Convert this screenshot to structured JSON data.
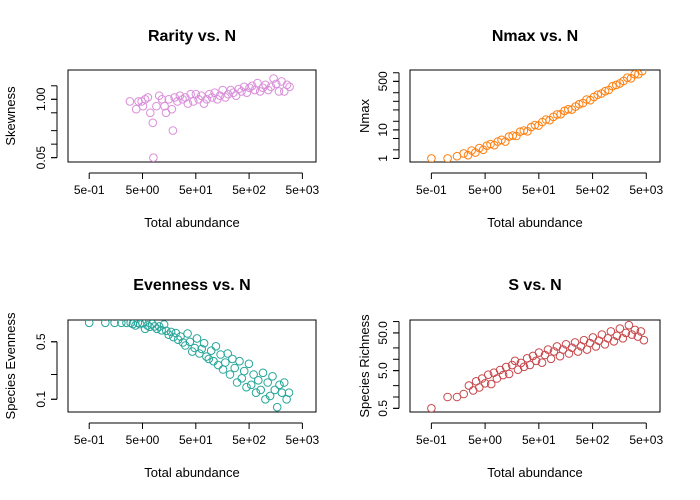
{
  "chart_data": [
    {
      "type": "scatter",
      "title": "Rarity vs. N",
      "xlabel": "Total abundance",
      "ylabel": "Skewness",
      "x_scale": "log",
      "y_scale": "log",
      "xlim": [
        0.2,
        9000
      ],
      "ylim": [
        0.04,
        4.5
      ],
      "x_ticks": [
        0.5,
        5,
        50,
        500,
        5000
      ],
      "x_tick_labels": [
        "5e-01",
        "5e+00",
        "5e+01",
        "5e+02",
        "5e+03"
      ],
      "y_ticks": [
        0.05,
        1.0
      ],
      "y_tick_labels": [
        "0.05",
        "1.00"
      ],
      "color": "#DA8FDA",
      "series": [
        {
          "points": [
            [
              2.9,
              0.9
            ],
            [
              3.8,
              0.6
            ],
            [
              4.2,
              0.9
            ],
            [
              4.8,
              0.9
            ],
            [
              5.1,
              0.7
            ],
            [
              5.6,
              1.0
            ],
            [
              6.3,
              1.1
            ],
            [
              7.0,
              0.5
            ],
            [
              7.8,
              0.3
            ],
            [
              8.0,
              0.05
            ],
            [
              9.1,
              0.7
            ],
            [
              10.3,
              1.2
            ],
            [
              11.6,
              1.0
            ],
            [
              13.0,
              0.7
            ],
            [
              13.8,
              0.5
            ],
            [
              15.6,
              1.0
            ],
            [
              17.7,
              0.6
            ],
            [
              18.6,
              0.2
            ],
            [
              20.0,
              1.1
            ],
            [
              22.5,
              0.9
            ],
            [
              25.2,
              1.2
            ],
            [
              28.3,
              1.0
            ],
            [
              31.7,
              1.1
            ],
            [
              35.6,
              0.8
            ],
            [
              39.9,
              1.3
            ],
            [
              44.8,
              0.9
            ],
            [
              50.3,
              1.3
            ],
            [
              56.5,
              1.0
            ],
            [
              63.4,
              1.2
            ],
            [
              71.2,
              0.8
            ],
            [
              79.9,
              1.0
            ],
            [
              89.7,
              1.3
            ],
            [
              100.7,
              1.1
            ],
            [
              113.1,
              1.4
            ],
            [
              126.9,
              1.0
            ],
            [
              142.5,
              1.2
            ],
            [
              160.0,
              1.6
            ],
            [
              179.6,
              1.1
            ],
            [
              201.6,
              1.3
            ],
            [
              226.3,
              1.6
            ],
            [
              254.1,
              1.4
            ],
            [
              285.2,
              1.2
            ],
            [
              320.2,
              1.7
            ],
            [
              359.4,
              1.5
            ],
            [
              403.4,
              1.9
            ],
            [
              452.9,
              1.4
            ],
            [
              508.4,
              1.8
            ],
            [
              570.7,
              2.0
            ],
            [
              640.7,
              1.6
            ],
            [
              719.2,
              2.3
            ],
            [
              807.4,
              1.5
            ],
            [
              906.3,
              1.8
            ],
            [
              1017.4,
              2.1
            ],
            [
              1142.1,
              1.6
            ],
            [
              1282.0,
              1.9
            ],
            [
              1439.2,
              2.9
            ],
            [
              1615.5,
              2.2
            ],
            [
              1813.6,
              1.5
            ],
            [
              2035.9,
              2.5
            ],
            [
              2285.4,
              1.5
            ],
            [
              2565.6,
              2.1
            ],
            [
              2880.0,
              1.9
            ]
          ]
        }
      ]
    },
    {
      "type": "scatter",
      "title": "Nmax vs. N",
      "xlabel": "Total abundance",
      "ylabel": "Nmax",
      "x_scale": "log",
      "y_scale": "log",
      "xlim": [
        0.2,
        9000
      ],
      "ylim": [
        0.75,
        1250
      ],
      "x_ticks": [
        0.5,
        5,
        50,
        500,
        5000
      ],
      "x_tick_labels": [
        "5e-01",
        "5e+00",
        "5e+01",
        "5e+02",
        "5e+03"
      ],
      "y_ticks": [
        1,
        10,
        500
      ],
      "y_tick_labels": [
        "1",
        "10",
        "500"
      ],
      "color": "#FF7F0E",
      "series": [
        {
          "points": [
            [
              0.5,
              1.0
            ],
            [
              1.0,
              1.0
            ],
            [
              1.5,
              1.2
            ],
            [
              2.0,
              1.5
            ],
            [
              2.4,
              1.3
            ],
            [
              2.8,
              1.9
            ],
            [
              3.3,
              1.6
            ],
            [
              3.9,
              2.3
            ],
            [
              4.6,
              2.0
            ],
            [
              5.4,
              2.8
            ],
            [
              6.3,
              3.2
            ],
            [
              7.4,
              2.9
            ],
            [
              8.6,
              3.9
            ],
            [
              10.1,
              4.5
            ],
            [
              11.9,
              3.9
            ],
            [
              13.9,
              5.8
            ],
            [
              16.3,
              6.3
            ],
            [
              19.1,
              6.1
            ],
            [
              22.4,
              8.6
            ],
            [
              26.2,
              9.4
            ],
            [
              30.7,
              8.9
            ],
            [
              36.0,
              12.5
            ],
            [
              42.2,
              14.8
            ],
            [
              49.4,
              14.1
            ],
            [
              57.9,
              18.8
            ],
            [
              67.9,
              23.0
            ],
            [
              79.5,
              21.9
            ],
            [
              93.2,
              28.7
            ],
            [
              109.2,
              34.9
            ],
            [
              127.9,
              35.5
            ],
            [
              149.9,
              46.4
            ],
            [
              175.7,
              52.7
            ],
            [
              205.9,
              51.5
            ],
            [
              241.2,
              65.3
            ],
            [
              282.6,
              79.3
            ],
            [
              331.2,
              86.5
            ],
            [
              388.1,
              115.7
            ],
            [
              454.8,
              109.3
            ],
            [
              532.9,
              143.1
            ],
            [
              624.5,
              170.4
            ],
            [
              731.7,
              187.5
            ],
            [
              857.4,
              226.3
            ],
            [
              1004.7,
              249.4
            ],
            [
              1177.3,
              338.4
            ],
            [
              1379.6,
              376.4
            ],
            [
              1616.6,
              423.6
            ],
            [
              1894.4,
              520.2
            ],
            [
              2219.8,
              670.9
            ],
            [
              2601.2,
              637.8
            ],
            [
              3048.1,
              887.2
            ],
            [
              3571.7,
              891.7
            ],
            [
              4185.3,
              1136.7
            ]
          ]
        }
      ]
    },
    {
      "type": "scatter",
      "title": "Evenness vs. N",
      "xlabel": "Total abundance",
      "ylabel": "Species Evenness",
      "x_scale": "log",
      "y_scale": "log",
      "xlim": [
        0.2,
        9000
      ],
      "ylim": [
        0.07,
        0.92
      ],
      "x_ticks": [
        0.5,
        5,
        50,
        500,
        5000
      ],
      "x_tick_labels": [
        "5e-01",
        "5e+00",
        "5e+01",
        "5e+02",
        "5e+03"
      ],
      "y_ticks": [
        0.1,
        0.5
      ],
      "y_tick_labels": [
        "0.1",
        "0.5"
      ],
      "color": "#26A69A",
      "series": [
        {
          "points": [
            [
              0.5,
              0.85
            ],
            [
              1.0,
              0.85
            ],
            [
              1.5,
              0.85
            ],
            [
              2.0,
              0.85
            ],
            [
              2.5,
              0.85
            ],
            [
              3.0,
              0.85
            ],
            [
              3.3,
              0.82
            ],
            [
              3.7,
              0.79
            ],
            [
              4.1,
              0.85
            ],
            [
              4.5,
              0.82
            ],
            [
              5.0,
              0.84
            ],
            [
              5.6,
              0.72
            ],
            [
              6.2,
              0.79
            ],
            [
              6.8,
              0.76
            ],
            [
              7.6,
              0.82
            ],
            [
              8.4,
              0.77
            ],
            [
              9.3,
              0.72
            ],
            [
              10.3,
              0.77
            ],
            [
              11.4,
              0.69
            ],
            [
              12.7,
              0.81
            ],
            [
              14.0,
              0.68
            ],
            [
              15.5,
              0.61
            ],
            [
              17.2,
              0.66
            ],
            [
              19.0,
              0.57
            ],
            [
              21.1,
              0.64
            ],
            [
              23.3,
              0.53
            ],
            [
              25.8,
              0.58
            ],
            [
              28.6,
              0.49
            ],
            [
              31.7,
              0.45
            ],
            [
              35.1,
              0.63
            ],
            [
              38.8,
              0.5
            ],
            [
              43.0,
              0.38
            ],
            [
              47.6,
              0.42
            ],
            [
              52.7,
              0.55
            ],
            [
              58.4,
              0.36
            ],
            [
              64.6,
              0.41
            ],
            [
              71.5,
              0.48
            ],
            [
              79.2,
              0.33
            ],
            [
              87.7,
              0.31
            ],
            [
              97.1,
              0.39
            ],
            [
              107.5,
              0.29
            ],
            [
              119.0,
              0.44
            ],
            [
              131.8,
              0.26
            ],
            [
              145.9,
              0.35
            ],
            [
              161.6,
              0.23
            ],
            [
              178.9,
              0.28
            ],
            [
              198.1,
              0.36
            ],
            [
              219.3,
              0.2
            ],
            [
              242.8,
              0.31
            ],
            [
              268.9,
              0.24
            ],
            [
              297.7,
              0.16
            ],
            [
              329.6,
              0.29
            ],
            [
              364.9,
              0.18
            ],
            [
              404.1,
              0.22
            ],
            [
              447.4,
              0.14
            ],
            [
              495.3,
              0.27
            ],
            [
              548.4,
              0.15
            ],
            [
              607.2,
              0.2
            ],
            [
              672.3,
              0.12
            ],
            [
              744.4,
              0.17
            ],
            [
              824.2,
              0.13
            ],
            [
              912.6,
              0.21
            ],
            [
              1010.4,
              0.1
            ],
            [
              1118.7,
              0.16
            ],
            [
              1238.6,
              0.11
            ],
            [
              1371.4,
              0.19
            ],
            [
              1518.4,
              0.13
            ],
            [
              1681.2,
              0.08
            ],
            [
              1861.3,
              0.15
            ],
            [
              2060.9,
              0.12
            ],
            [
              2281.8,
              0.16
            ],
            [
              2526.4,
              0.1
            ],
            [
              2797.2,
              0.12
            ]
          ]
        }
      ]
    },
    {
      "type": "scatter",
      "title": "S vs. N",
      "xlabel": "Total abundance",
      "ylabel": "Species Richness",
      "x_scale": "log",
      "y_scale": "log",
      "xlim": [
        0.2,
        9000
      ],
      "ylim": [
        0.4,
        110
      ],
      "x_ticks": [
        0.5,
        5,
        50,
        500,
        5000
      ],
      "x_tick_labels": [
        "5e-01",
        "5e+00",
        "5e+01",
        "5e+02",
        "5e+03"
      ],
      "y_ticks": [
        0.5,
        5,
        50
      ],
      "y_tick_labels": [
        "0.5",
        "5.0",
        "50.0"
      ],
      "color": "#C8474A",
      "series": [
        {
          "points": [
            [
              0.5,
              0.5
            ],
            [
              1.0,
              1.0
            ],
            [
              1.5,
              1.0
            ],
            [
              2.0,
              1.2
            ],
            [
              2.5,
              2.0
            ],
            [
              3.0,
              1.5
            ],
            [
              3.4,
              2.6
            ],
            [
              3.9,
              1.8
            ],
            [
              4.4,
              3.1
            ],
            [
              5.0,
              2.3
            ],
            [
              5.7,
              3.9
            ],
            [
              6.5,
              2.2
            ],
            [
              7.3,
              4.4
            ],
            [
              8.3,
              3.1
            ],
            [
              9.5,
              5.2
            ],
            [
              10.8,
              3.8
            ],
            [
              12.3,
              6.2
            ],
            [
              14.0,
              4.1
            ],
            [
              15.9,
              7.0
            ],
            [
              18.0,
              9.1
            ],
            [
              20.5,
              5.3
            ],
            [
              23.3,
              8.0
            ],
            [
              26.5,
              6.3
            ],
            [
              30.2,
              10.6
            ],
            [
              34.3,
              7.1
            ],
            [
              39.0,
              12.3
            ],
            [
              44.4,
              9.1
            ],
            [
              50.4,
              15.0
            ],
            [
              57.3,
              8.1
            ],
            [
              65.2,
              13.0
            ],
            [
              74.1,
              18.0
            ],
            [
              84.3,
              10.3
            ],
            [
              95.8,
              16.2
            ],
            [
              109.0,
              22.0
            ],
            [
              123.9,
              12.1
            ],
            [
              140.8,
              18.0
            ],
            [
              160.1,
              25.0
            ],
            [
              182.1,
              14.2
            ],
            [
              207.0,
              20.3
            ],
            [
              235.4,
              28.0
            ],
            [
              267.6,
              16.0
            ],
            [
              304.3,
              22.1
            ],
            [
              345.9,
              32.0
            ],
            [
              393.3,
              18.0
            ],
            [
              447.2,
              27.0
            ],
            [
              508.4,
              38.0
            ],
            [
              578.1,
              22.0
            ],
            [
              657.2,
              31.0
            ],
            [
              747.2,
              45.0
            ],
            [
              849.6,
              25.0
            ],
            [
              965.9,
              36.0
            ],
            [
              1098.2,
              55.0
            ],
            [
              1248.6,
              30.0
            ],
            [
              1419.6,
              42.0
            ],
            [
              1614.0,
              65.0
            ],
            [
              1835.0,
              36.0
            ],
            [
              2086.3,
              50.0
            ],
            [
              2372.0,
              80.0
            ],
            [
              2696.9,
              45.0
            ],
            [
              3066.2,
              60.0
            ],
            [
              3486.1,
              40.0
            ],
            [
              3963.5,
              55.0
            ],
            [
              4506.3,
              32.0
            ]
          ]
        }
      ]
    }
  ]
}
